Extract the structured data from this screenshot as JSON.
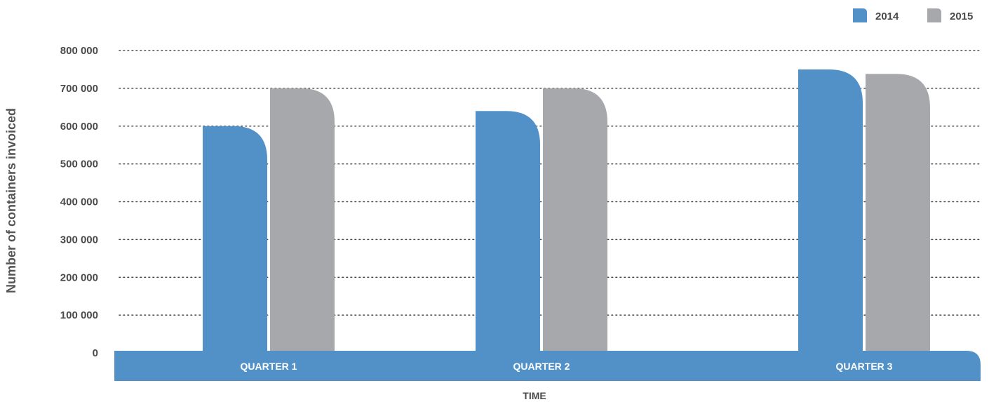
{
  "chart_data": {
    "type": "bar",
    "categories": [
      "QUARTER 1",
      "QUARTER 2",
      "QUARTER 3"
    ],
    "series": [
      {
        "name": "2014",
        "values": [
          600000,
          640000,
          750000
        ],
        "color": "#5291c8"
      },
      {
        "name": "2015",
        "values": [
          700000,
          700000,
          738000
        ],
        "color": "#a7a8ab"
      }
    ],
    "xlabel": "TIME",
    "ylabel": "Number of containers invoiced",
    "ylim": [
      0,
      800000
    ],
    "yticks": [
      0,
      100000,
      200000,
      300000,
      400000,
      500000,
      600000,
      700000,
      800000
    ],
    "ytick_labels": [
      "0",
      "100 000",
      "200 000",
      "300 000",
      "400 000",
      "500 000",
      "600 000",
      "700 000",
      "800 000"
    ],
    "grid": "dotted horizontal",
    "legend_position": "top-right",
    "axis_band_color": "#5291c8"
  }
}
